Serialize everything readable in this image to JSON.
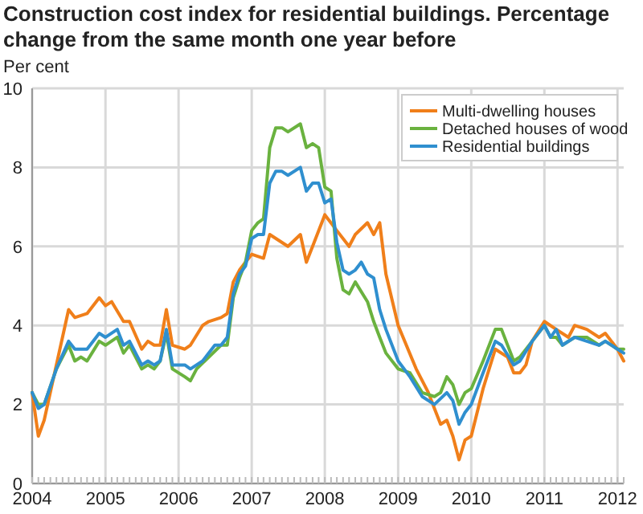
{
  "chart_data": {
    "type": "line",
    "title": "Construction cost index for residential buildings. Percentage change from the same month one year before",
    "ylabel": "Per cent",
    "xlim": [
      "2004-01",
      "2012-02"
    ],
    "xticks": [
      {
        "value": "2004-01",
        "label": "2004"
      },
      {
        "value": "2005-01",
        "label": "2005"
      },
      {
        "value": "2006-01",
        "label": "2006"
      },
      {
        "value": "2007-01",
        "label": "2007"
      },
      {
        "value": "2008-01",
        "label": "2008"
      },
      {
        "value": "2009-01",
        "label": "2009"
      },
      {
        "value": "2010-01",
        "label": "2010"
      },
      {
        "value": "2011-01",
        "label": "2011"
      },
      {
        "value": "2012-01",
        "label": "2012"
      }
    ],
    "ylim": [
      0,
      10
    ],
    "yticks": [
      0,
      2,
      4,
      6,
      8,
      10
    ],
    "grid": true,
    "legend": "top right",
    "series": [
      {
        "name": "Multi-dwelling houses",
        "color": "#f07f1a",
        "x": [
          "2004-01",
          "2004-02",
          "2004-03",
          "2004-07",
          "2004-08",
          "2004-10",
          "2004-12",
          "2005-01",
          "2005-02",
          "2005-04",
          "2005-05",
          "2005-07",
          "2005-08",
          "2005-09",
          "2005-10",
          "2005-11",
          "2005-12",
          "2006-02",
          "2006-03",
          "2006-05",
          "2006-06",
          "2006-08",
          "2006-09",
          "2006-10",
          "2006-11",
          "2006-12",
          "2007-01",
          "2007-03",
          "2007-04",
          "2007-07",
          "2007-09",
          "2007-10",
          "2007-11",
          "2008-01",
          "2008-03",
          "2008-05",
          "2008-06",
          "2008-08",
          "2008-09",
          "2008-10",
          "2008-11",
          "2009-01",
          "2009-04",
          "2009-06",
          "2009-07",
          "2009-08",
          "2009-09",
          "2009-10",
          "2009-11",
          "2009-12",
          "2010-01",
          "2010-03",
          "2010-05",
          "2010-07",
          "2010-08",
          "2010-09",
          "2010-10",
          "2010-11",
          "2011-01",
          "2011-03",
          "2011-05",
          "2011-06",
          "2011-08",
          "2011-10",
          "2011-11",
          "2012-01",
          "2012-02"
        ],
        "values": [
          2.3,
          1.2,
          1.6,
          4.4,
          4.2,
          4.3,
          4.7,
          4.5,
          4.6,
          4.1,
          4.1,
          3.4,
          3.6,
          3.5,
          3.5,
          4.4,
          3.5,
          3.4,
          3.5,
          4.0,
          4.1,
          4.2,
          4.3,
          5.1,
          5.4,
          5.6,
          5.8,
          5.7,
          6.3,
          6.0,
          6.3,
          5.6,
          6.0,
          6.8,
          6.4,
          6.0,
          6.3,
          6.6,
          6.3,
          6.6,
          5.3,
          4.0,
          2.9,
          2.3,
          1.9,
          1.5,
          1.6,
          1.2,
          0.6,
          1.1,
          1.2,
          2.4,
          3.4,
          3.2,
          2.8,
          2.8,
          3.0,
          3.6,
          4.1,
          3.9,
          3.7,
          4.0,
          3.9,
          3.7,
          3.8,
          3.4,
          3.1
        ]
      },
      {
        "name": "Detached houses of wood",
        "color": "#6ab23f",
        "x": [
          "2004-01",
          "2004-02",
          "2004-03",
          "2004-05",
          "2004-07",
          "2004-08",
          "2004-09",
          "2004-10",
          "2004-12",
          "2005-01",
          "2005-03",
          "2005-04",
          "2005-05",
          "2005-07",
          "2005-08",
          "2005-09",
          "2005-10",
          "2005-11",
          "2005-12",
          "2006-02",
          "2006-03",
          "2006-04",
          "2006-06",
          "2006-08",
          "2006-09",
          "2006-10",
          "2006-11",
          "2006-12",
          "2007-01",
          "2007-02",
          "2007-03",
          "2007-04",
          "2007-05",
          "2007-06",
          "2007-07",
          "2007-09",
          "2007-10",
          "2007-11",
          "2007-12",
          "2008-01",
          "2008-02",
          "2008-03",
          "2008-04",
          "2008-05",
          "2008-06",
          "2008-08",
          "2008-09",
          "2008-10",
          "2008-11",
          "2009-01",
          "2009-03",
          "2009-05",
          "2009-07",
          "2009-08",
          "2009-09",
          "2009-10",
          "2009-11",
          "2009-12",
          "2010-01",
          "2010-03",
          "2010-05",
          "2010-06",
          "2010-08",
          "2010-09",
          "2010-11",
          "2011-01",
          "2011-02",
          "2011-03",
          "2011-04",
          "2011-06",
          "2011-08",
          "2011-10",
          "2011-11",
          "2012-01",
          "2012-02"
        ],
        "values": [
          2.3,
          2.0,
          2.0,
          2.9,
          3.5,
          3.1,
          3.2,
          3.1,
          3.6,
          3.5,
          3.7,
          3.3,
          3.5,
          2.9,
          3.0,
          2.9,
          3.1,
          3.8,
          2.9,
          2.7,
          2.6,
          2.9,
          3.2,
          3.5,
          3.5,
          4.7,
          5.2,
          5.6,
          6.4,
          6.6,
          6.7,
          8.5,
          9.0,
          9.0,
          8.9,
          9.1,
          8.5,
          8.6,
          8.5,
          7.5,
          7.4,
          5.7,
          4.9,
          4.8,
          5.1,
          4.6,
          4.1,
          3.7,
          3.3,
          2.9,
          2.8,
          2.3,
          2.2,
          2.3,
          2.7,
          2.5,
          2.0,
          2.3,
          2.4,
          3.1,
          3.9,
          3.9,
          3.1,
          3.2,
          3.6,
          4.0,
          3.7,
          3.7,
          3.5,
          3.7,
          3.7,
          3.5,
          3.6,
          3.4,
          3.4
        ]
      },
      {
        "name": "Residential buildings",
        "color": "#2f8fcf",
        "x": [
          "2004-01",
          "2004-02",
          "2004-03",
          "2004-05",
          "2004-07",
          "2004-08",
          "2004-10",
          "2004-12",
          "2005-01",
          "2005-03",
          "2005-04",
          "2005-05",
          "2005-07",
          "2005-08",
          "2005-09",
          "2005-10",
          "2005-11",
          "2005-12",
          "2006-02",
          "2006-03",
          "2006-05",
          "2006-07",
          "2006-08",
          "2006-09",
          "2006-10",
          "2006-11",
          "2006-12",
          "2007-01",
          "2007-02",
          "2007-03",
          "2007-04",
          "2007-05",
          "2007-06",
          "2007-07",
          "2007-09",
          "2007-10",
          "2007-11",
          "2007-12",
          "2008-01",
          "2008-02",
          "2008-03",
          "2008-04",
          "2008-05",
          "2008-06",
          "2008-07",
          "2008-08",
          "2008-09",
          "2008-10",
          "2008-11",
          "2009-01",
          "2009-03",
          "2009-05",
          "2009-07",
          "2009-09",
          "2009-10",
          "2009-11",
          "2009-12",
          "2010-01",
          "2010-03",
          "2010-05",
          "2010-06",
          "2010-08",
          "2010-09",
          "2010-11",
          "2011-01",
          "2011-02",
          "2011-03",
          "2011-04",
          "2011-06",
          "2011-08",
          "2011-10",
          "2011-11",
          "2012-01",
          "2012-02"
        ],
        "values": [
          2.3,
          1.9,
          2.0,
          2.9,
          3.6,
          3.4,
          3.4,
          3.8,
          3.7,
          3.9,
          3.5,
          3.6,
          3.0,
          3.1,
          3.0,
          3.1,
          3.9,
          3.0,
          3.0,
          2.9,
          3.1,
          3.5,
          3.5,
          3.7,
          4.8,
          5.3,
          5.5,
          6.2,
          6.3,
          6.3,
          7.6,
          7.9,
          7.9,
          7.8,
          8.0,
          7.4,
          7.6,
          7.6,
          7.1,
          7.2,
          6.1,
          5.4,
          5.3,
          5.4,
          5.6,
          5.3,
          5.2,
          4.4,
          3.9,
          3.1,
          2.7,
          2.2,
          2.0,
          2.3,
          2.1,
          1.5,
          1.8,
          2.0,
          2.8,
          3.6,
          3.5,
          3.0,
          3.1,
          3.6,
          4.0,
          3.7,
          3.9,
          3.5,
          3.7,
          3.6,
          3.5,
          3.6,
          3.4,
          3.3
        ]
      }
    ]
  }
}
